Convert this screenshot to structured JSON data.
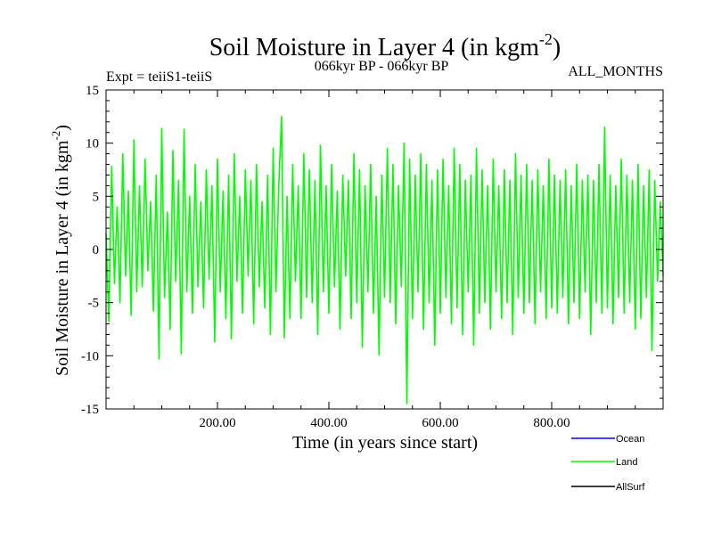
{
  "chart_data": {
    "type": "line",
    "title_main": "Soil Moisture in Layer 4 (in kgm",
    "title_sup": "-2",
    "title_close": ")",
    "experiment_label": "Expt = teiiS1-teiiS",
    "period_label": "066kyr BP - 066kyr BP",
    "months_label": "ALL_MONTHS",
    "xlabel": "Time (in years since start)",
    "ylabel_main": "Soil Moisture in Layer 4 (in kgm",
    "ylabel_sup": "-2",
    "ylabel_close": ")",
    "xlim": [
      0,
      1000
    ],
    "ylim": [
      -15,
      15
    ],
    "x_ticks": [
      200,
      400,
      600,
      800
    ],
    "x_tick_labels": [
      "200.00",
      "400.00",
      "600.00",
      "800.00"
    ],
    "y_ticks": [
      -15,
      -10,
      -5,
      0,
      5,
      10,
      15
    ],
    "y_tick_labels": [
      "-15",
      "-10",
      "-5",
      "0",
      "5",
      "10",
      "15"
    ],
    "grid": false,
    "legend_placement": "bottom-right, below plot",
    "series": [
      {
        "name": "Ocean",
        "color": "#0000ff",
        "values": []
      },
      {
        "name": "Land",
        "color": "#00ff00",
        "points": [
          [
            0,
            1.5
          ],
          [
            5,
            -6.8
          ],
          [
            10,
            7.8
          ],
          [
            15,
            -3.2
          ],
          [
            20,
            4.0
          ],
          [
            25,
            -5.0
          ],
          [
            30,
            9.0
          ],
          [
            35,
            -2.5
          ],
          [
            40,
            5.5
          ],
          [
            45,
            -6.2
          ],
          [
            50,
            10.3
          ],
          [
            55,
            -4.0
          ],
          [
            60,
            6.0
          ],
          [
            65,
            -3.5
          ],
          [
            70,
            8.5
          ],
          [
            75,
            -2.0
          ],
          [
            80,
            4.5
          ],
          [
            85,
            -5.8
          ],
          [
            90,
            7.0
          ],
          [
            95,
            -10.3
          ],
          [
            100,
            11.4
          ],
          [
            105,
            -4.5
          ],
          [
            110,
            3.5
          ],
          [
            115,
            -7.5
          ],
          [
            120,
            9.3
          ],
          [
            125,
            -3.0
          ],
          [
            130,
            6.5
          ],
          [
            135,
            -9.8
          ],
          [
            140,
            11.3
          ],
          [
            145,
            -4.0
          ],
          [
            150,
            5.0
          ],
          [
            155,
            -6.0
          ],
          [
            160,
            8.0
          ],
          [
            165,
            -3.5
          ],
          [
            170,
            4.5
          ],
          [
            175,
            -5.5
          ],
          [
            180,
            7.5
          ],
          [
            185,
            -2.8
          ],
          [
            190,
            6.0
          ],
          [
            195,
            -8.7
          ],
          [
            200,
            8.5
          ],
          [
            205,
            -4.0
          ],
          [
            210,
            5.5
          ],
          [
            215,
            -6.5
          ],
          [
            220,
            7.0
          ],
          [
            225,
            -8.4
          ],
          [
            230,
            9.0
          ],
          [
            235,
            -3.0
          ],
          [
            240,
            5.0
          ],
          [
            245,
            -6.0
          ],
          [
            250,
            7.5
          ],
          [
            255,
            -2.5
          ],
          [
            260,
            6.5
          ],
          [
            265,
            -7.0
          ],
          [
            270,
            8.0
          ],
          [
            275,
            -3.5
          ],
          [
            280,
            4.5
          ],
          [
            285,
            -5.5
          ],
          [
            290,
            7.0
          ],
          [
            295,
            -8.0
          ],
          [
            300,
            9.5
          ],
          [
            305,
            -4.0
          ],
          [
            310,
            6.0
          ],
          [
            315,
            12.5
          ],
          [
            320,
            -8.3
          ],
          [
            325,
            5.0
          ],
          [
            330,
            -6.5
          ],
          [
            335,
            8.0
          ],
          [
            340,
            -3.0
          ],
          [
            345,
            6.0
          ],
          [
            350,
            -6.5
          ],
          [
            355,
            9.0
          ],
          [
            360,
            -4.5
          ],
          [
            365,
            7.5
          ],
          [
            370,
            -5.0
          ],
          [
            375,
            6.5
          ],
          [
            380,
            -8.0
          ],
          [
            385,
            9.8
          ],
          [
            390,
            -4.0
          ],
          [
            395,
            6.0
          ],
          [
            400,
            -6.0
          ],
          [
            405,
            8.0
          ],
          [
            410,
            -3.5
          ],
          [
            415,
            5.5
          ],
          [
            420,
            -7.5
          ],
          [
            425,
            7.0
          ],
          [
            430,
            -2.5
          ],
          [
            435,
            6.5
          ],
          [
            440,
            -6.5
          ],
          [
            445,
            9.0
          ],
          [
            450,
            -5.0
          ],
          [
            455,
            7.5
          ],
          [
            460,
            -9.2
          ],
          [
            465,
            6.0
          ],
          [
            470,
            -4.0
          ],
          [
            475,
            8.0
          ],
          [
            480,
            -6.0
          ],
          [
            485,
            5.0
          ],
          [
            490,
            -9.9
          ],
          [
            495,
            7.0
          ],
          [
            500,
            -4.5
          ],
          [
            505,
            9.5
          ],
          [
            510,
            -5.0
          ],
          [
            515,
            8.0
          ],
          [
            520,
            -7.0
          ],
          [
            525,
            6.0
          ],
          [
            530,
            -3.5
          ],
          [
            535,
            10.0
          ],
          [
            540,
            -14.5
          ],
          [
            545,
            8.5
          ],
          [
            550,
            -6.5
          ],
          [
            555,
            7.0
          ],
          [
            560,
            -4.0
          ],
          [
            565,
            9.0
          ],
          [
            570,
            -7.5
          ],
          [
            575,
            8.0
          ],
          [
            580,
            -5.0
          ],
          [
            585,
            6.5
          ],
          [
            590,
            -9.0
          ],
          [
            595,
            7.5
          ],
          [
            600,
            -6.0
          ],
          [
            605,
            8.5
          ],
          [
            610,
            -4.5
          ],
          [
            615,
            6.0
          ],
          [
            620,
            -7.0
          ],
          [
            625,
            9.5
          ],
          [
            630,
            -5.5
          ],
          [
            635,
            8.0
          ],
          [
            640,
            -8.0
          ],
          [
            645,
            6.5
          ],
          [
            650,
            -4.0
          ],
          [
            655,
            7.0
          ],
          [
            660,
            -9.0
          ],
          [
            665,
            9.5
          ],
          [
            670,
            -6.0
          ],
          [
            675,
            7.5
          ],
          [
            680,
            -5.0
          ],
          [
            685,
            6.0
          ],
          [
            690,
            -7.5
          ],
          [
            695,
            8.5
          ],
          [
            700,
            -4.0
          ],
          [
            705,
            6.0
          ],
          [
            710,
            -6.5
          ],
          [
            715,
            7.5
          ],
          [
            720,
            -5.0
          ],
          [
            725,
            6.5
          ],
          [
            730,
            -8.0
          ],
          [
            735,
            9.0
          ],
          [
            740,
            -4.5
          ],
          [
            745,
            7.0
          ],
          [
            750,
            -6.0
          ],
          [
            755,
            8.0
          ],
          [
            760,
            -5.0
          ],
          [
            765,
            6.5
          ],
          [
            770,
            -7.0
          ],
          [
            775,
            7.5
          ],
          [
            780,
            -4.0
          ],
          [
            785,
            6.0
          ],
          [
            790,
            -6.5
          ],
          [
            795,
            8.5
          ],
          [
            800,
            -5.5
          ],
          [
            805,
            7.0
          ],
          [
            810,
            -6.0
          ],
          [
            815,
            6.5
          ],
          [
            820,
            -4.5
          ],
          [
            825,
            7.5
          ],
          [
            830,
            -7.0
          ],
          [
            835,
            6.0
          ],
          [
            840,
            -5.0
          ],
          [
            845,
            8.0
          ],
          [
            850,
            -6.5
          ],
          [
            855,
            6.5
          ],
          [
            860,
            -4.0
          ],
          [
            865,
            7.0
          ],
          [
            870,
            -8.0
          ],
          [
            875,
            6.5
          ],
          [
            880,
            -5.0
          ],
          [
            885,
            8.0
          ],
          [
            890,
            -6.0
          ],
          [
            895,
            11.5
          ],
          [
            900,
            -5.5
          ],
          [
            905,
            7.0
          ],
          [
            910,
            -7.0
          ],
          [
            915,
            6.0
          ],
          [
            920,
            -4.5
          ],
          [
            925,
            8.5
          ],
          [
            930,
            -6.0
          ],
          [
            935,
            7.0
          ],
          [
            940,
            -5.0
          ],
          [
            945,
            6.5
          ],
          [
            950,
            -7.5
          ],
          [
            955,
            8.0
          ],
          [
            960,
            -6.5
          ],
          [
            965,
            6.0
          ],
          [
            970,
            -4.5
          ],
          [
            975,
            7.5
          ],
          [
            980,
            -9.5
          ],
          [
            985,
            6.5
          ],
          [
            990,
            -3.0
          ],
          [
            995,
            4.5
          ],
          [
            1000,
            -2.5
          ]
        ]
      },
      {
        "name": "AllSurf",
        "color": "#000000",
        "values": []
      }
    ]
  }
}
